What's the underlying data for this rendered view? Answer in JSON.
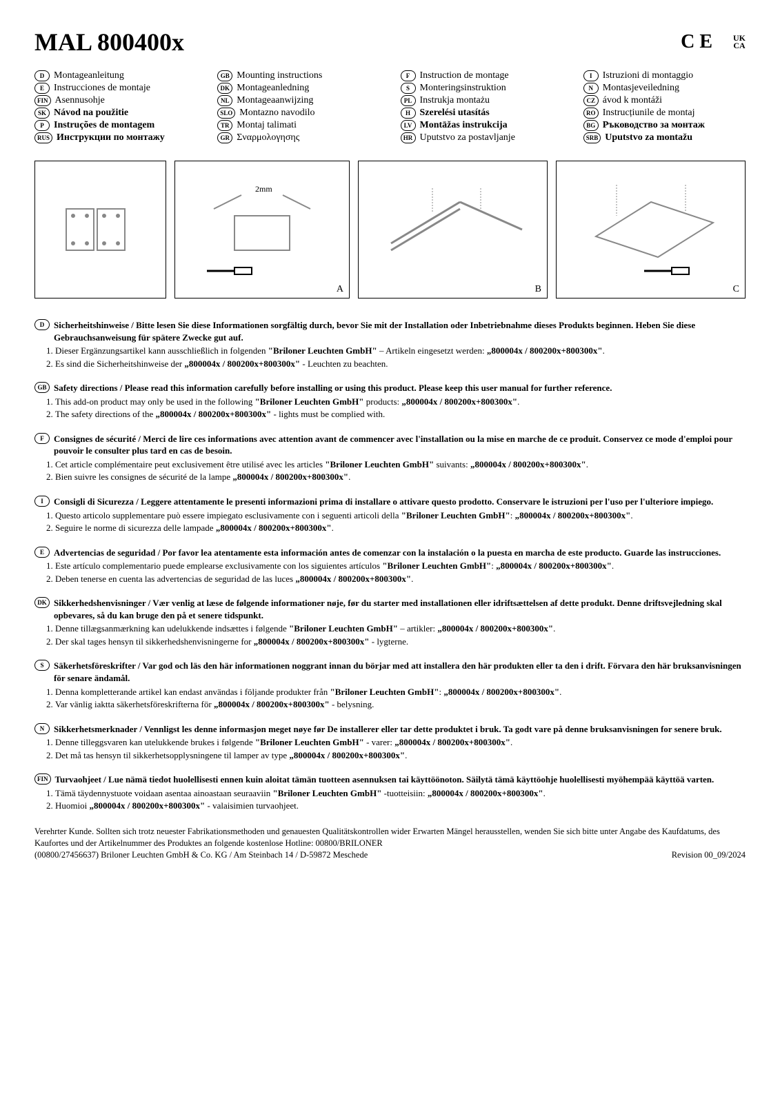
{
  "title": "MAL 800400x",
  "marks": {
    "ce": "C E",
    "ukca_top": "UK",
    "ukca_bot": "CA"
  },
  "languages": [
    {
      "code": "D",
      "label": "Montageanleitung"
    },
    {
      "code": "GB",
      "label": "Mounting instructions"
    },
    {
      "code": "F",
      "label": "Instruction de montage"
    },
    {
      "code": "I",
      "label": "Istruzioni di montaggio"
    },
    {
      "code": "E",
      "label": "Instrucciones de montaje"
    },
    {
      "code": "DK",
      "label": "Montageanledning"
    },
    {
      "code": "S",
      "label": "Monteringsinstruktion"
    },
    {
      "code": "N",
      "label": "Montasjeveiledning"
    },
    {
      "code": "FIN",
      "label": "Asennusohje"
    },
    {
      "code": "NL",
      "label": "Montageaanwijzing"
    },
    {
      "code": "PL",
      "label": "Instrukja montażu"
    },
    {
      "code": "CZ",
      "label": "ávod k montáži"
    },
    {
      "code": "SK",
      "label": "Návod na použitie"
    },
    {
      "code": "SLO",
      "label": "Montazno navodilo"
    },
    {
      "code": "H",
      "label": "Szerelési utasítás"
    },
    {
      "code": "RO",
      "label": "Instrucțiunile de montaj"
    },
    {
      "code": "P",
      "label": "Instruções de montagem"
    },
    {
      "code": "TR",
      "label": "Montaj talimati"
    },
    {
      "code": "LV",
      "label": "Montāžas instrukcija"
    },
    {
      "code": "BG",
      "label": "Ръководство за монтаж"
    },
    {
      "code": "RUS",
      "label": "Инструкции по монтажу"
    },
    {
      "code": "GR",
      "label": "Σναρμολογησης"
    },
    {
      "code": "HR",
      "label": "Uputstvo za postavljanje"
    },
    {
      "code": "SRB",
      "label": "Uputstvo za montažu"
    }
  ],
  "diagrams": [
    {
      "label": "",
      "note": "2mm",
      "tag": "A"
    },
    {
      "label": "",
      "tag": "B"
    },
    {
      "label": "",
      "tag": "C"
    }
  ],
  "company": "\"Briloner Leuchten GmbH\"",
  "codes": "„800004x / 800200x+800300x\"",
  "codes_short": "„800004x / 800200x+800300x\"",
  "sections": [
    {
      "code": "D",
      "bold": "Sicherheitshinweise / Bitte lesen Sie diese Informationen sorgfältig durch, bevor Sie mit der Installation oder Inbetriebnahme dieses Produkts beginnen. Heben Sie diese Gebrauchsanweisung für spätere Zwecke gut auf.",
      "items": [
        "Dieser Ergänzungsartikel kann ausschließlich in folgenden \"Briloner Leuchten GmbH\" – Artikeln eingesetzt werden: „800004x / 800200x+800300x\".",
        "Es sind die Sicherheitshinweise der „800004x / 800200x+800300x\" - Leuchten zu beachten."
      ]
    },
    {
      "code": "GB",
      "bold": "Safety directions / Please read this information carefully before installing or using this product. Please keep this user manual for further reference.",
      "items": [
        "This add-on product may only be used in the following \"Briloner Leuchten GmbH\" products: „800004x / 800200x+800300x\".",
        "The safety directions of the „800004x / 800200x+800300x\" - lights must be complied with."
      ]
    },
    {
      "code": "F",
      "bold": "Consignes de sécurité / Merci de lire ces informations avec attention avant de commencer avec l'installation ou la mise en marche de ce produit. Conservez ce mode d'emploi pour pouvoir le consulter plus tard en cas de besoin.",
      "items": [
        "Cet article complémentaire peut exclusivement être utilisé avec les articles \"Briloner Leuchten GmbH\" suivants: „800004x / 800200x+800300x\".",
        "Bien suivre les consignes de sécurité de la lampe „800004x / 800200x+800300x\"."
      ]
    },
    {
      "code": "I",
      "bold": "Consigli di Sicurezza / Leggere attentamente le presenti informazioni prima di installare o attivare questo prodotto. Conservare le istruzioni per l'uso per l'ulteriore impiego.",
      "items": [
        "Questo articolo supplementare può essere impiegato esclusivamente con i seguenti articoli della \"Briloner Leuchten GmbH\": „800004x / 800200x+800300x\".",
        "Seguire le norme di sicurezza delle lampade „800004x / 800200x+800300x\"."
      ]
    },
    {
      "code": "E",
      "bold": "Advertencias de seguridad / Por favor lea atentamente esta información antes de comenzar con la instalación o la puesta en marcha de este producto. Guarde las instrucciones.",
      "items": [
        "Este artículo complementario puede emplearse exclusivamente con los siguientes artículos \"Briloner Leuchten GmbH\": „800004x / 800200x+800300x\".",
        "Deben tenerse en cuenta las advertencias de seguridad de las luces „800004x / 800200x+800300x\"."
      ]
    },
    {
      "code": "DK",
      "bold": "Sikkerhedshenvisninger / Vær venlig at læse de følgende informationer nøje, før du starter med installationen eller idriftsættelsen af dette produkt. Denne driftsvejledning skal opbevares, så du kan bruge den på et senere tidspunkt.",
      "items": [
        "Denne tillægsanmærkning kan udelukkende indsættes i følgende \"Briloner Leuchten GmbH\" – artikler: „800004x / 800200x+800300x\".",
        "Der skal tages hensyn til sikkerhedshenvisningerne for „800004x / 800200x+800300x\" - lygterne."
      ]
    },
    {
      "code": "S",
      "bold": "Säkerhetsföreskrifter / Var god och läs den här informationen noggrant innan du börjar med att installera den här produkten eller ta den i drift. Förvara den här bruksanvisningen för senare ändamål.",
      "items": [
        "Denna kompletterande artikel kan endast användas i följande produkter från \"Briloner Leuchten GmbH\": „800004x / 800200x+800300x\".",
        "Var vänlig iaktta säkerhetsföreskrifterna för „800004x / 800200x+800300x\" - belysning."
      ]
    },
    {
      "code": "N",
      "bold": "Sikkerhetsmerknader / Vennligst les denne informasjon meget nøye før De installerer eller tar dette produktet i bruk. Ta godt vare på denne bruksanvisningen for senere bruk.",
      "items": [
        "Denne tilleggsvaren kan utelukkende brukes i følgende \"Briloner Leuchten GmbH\" - varer: „800004x / 800200x+800300x\".",
        "Det må tas hensyn til sikkerhetsopplysningene til lamper av type „800004x / 800200x+800300x\"."
      ]
    },
    {
      "code": "FIN",
      "bold": "Turvaohjeet / Lue nämä tiedot huolellisesti ennen kuin aloitat tämän tuotteen asennuksen tai käyttöönoton. Säilytä tämä käyttöohje huolellisesti myöhempää käyttöä varten.",
      "items": [
        "Tämä täydennystuote voidaan asentaa ainoastaan seuraaviin \"Briloner Leuchten GmbH\" -tuotteisiin: „800004x / 800200x+800300x\".",
        "Huomioi „800004x / 800200x+800300x\" - valaisimien turvaohjeet."
      ]
    }
  ],
  "footer": {
    "line1": "Verehrter Kunde. Sollten sich trotz neuester Fabrikationsmethoden und genauesten Qualitätskontrollen wider Erwarten Mängel herausstellen, wenden Sie sich bitte unter Angabe des Kaufdatums, des Kaufortes und der Artikelnummer des Produktes an folgende kostenlose Hotline: 00800/BRILONER",
    "line2": "(00800/27456637) Briloner Leuchten GmbH & Co. KG / Am Steinbach 14 / D-59872 Meschede",
    "revision": "Revision 00_09/2024"
  }
}
